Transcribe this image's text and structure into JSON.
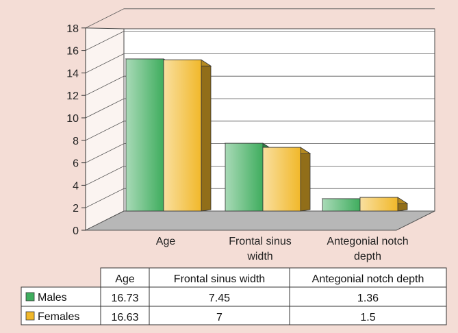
{
  "chart_data": {
    "type": "bar",
    "categories": [
      [
        "Age"
      ],
      [
        "Frontal sinus",
        "width"
      ],
      [
        "Antegonial notch",
        "depth"
      ]
    ],
    "table_headers": [
      "Age",
      "Frontal sinus width",
      "Antegonial notch depth"
    ],
    "series": [
      {
        "name": "Males",
        "values": [
          16.73,
          7.45,
          1.36
        ],
        "display": [
          "16.73",
          "7.45",
          "1.36"
        ]
      },
      {
        "name": "Females",
        "values": [
          16.63,
          7,
          1.5
        ],
        "display": [
          "16.63",
          "7",
          "1.5"
        ]
      }
    ],
    "ylim": [
      0,
      18
    ],
    "y_ticks": [
      "0",
      "2",
      "4",
      "6",
      "8",
      "10",
      "12",
      "14",
      "16",
      "18"
    ],
    "grid": true,
    "legend": "table-left"
  },
  "colors": {
    "males": "#3fad5e",
    "females": "#f1b82a",
    "floor": "#b7b7b7",
    "wall": "#ffffff"
  }
}
